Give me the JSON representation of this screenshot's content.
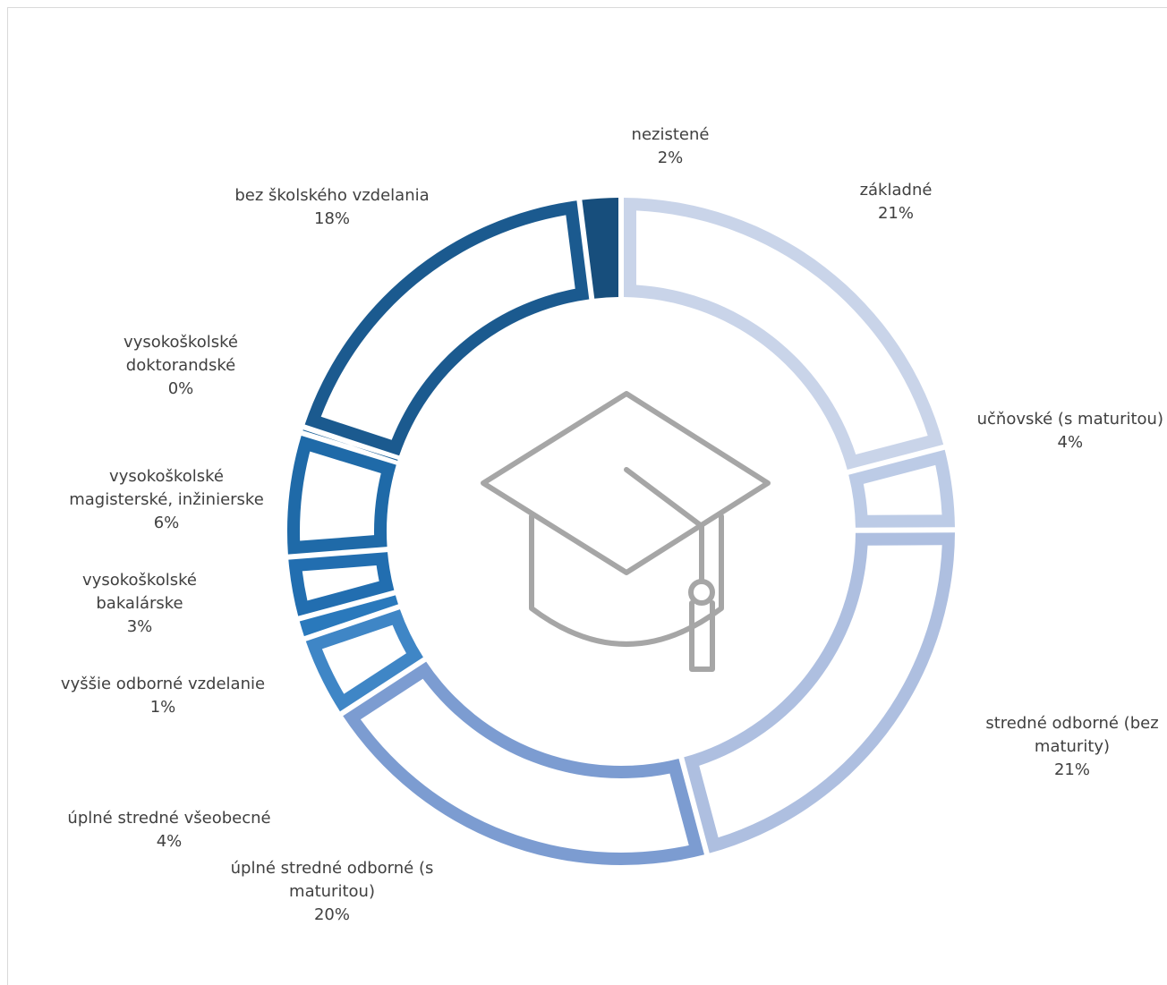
{
  "chart_data": {
    "type": "pie",
    "title": "",
    "center_icon": "graduation-cap-icon",
    "slices": [
      {
        "label_lines": [
          "základné"
        ],
        "percent_label": "21%",
        "value": 21,
        "color": "#c9d4e9"
      },
      {
        "label_lines": [
          "učňovské (s maturitou)"
        ],
        "percent_label": "4%",
        "value": 4,
        "color": "#bccbe6"
      },
      {
        "label_lines": [
          "stredné odborné (bez",
          "maturity)"
        ],
        "percent_label": "21%",
        "value": 21,
        "color": "#aebfe0"
      },
      {
        "label_lines": [
          "úplné stredné odborné (s",
          "maturitou)"
        ],
        "percent_label": "20%",
        "value": 20,
        "color": "#7c9cd1"
      },
      {
        "label_lines": [
          "úplné stredné všeobecné"
        ],
        "percent_label": "4%",
        "value": 4,
        "color": "#3f86c6"
      },
      {
        "label_lines": [
          "vyššie odborné vzdelanie"
        ],
        "percent_label": "1%",
        "value": 1,
        "color": "#2a79bc"
      },
      {
        "label_lines": [
          "vysokoškolské",
          "bakalárske"
        ],
        "percent_label": "3%",
        "value": 3,
        "color": "#226eb0"
      },
      {
        "label_lines": [
          "vysokoškolské",
          "magisterské, inžinierske"
        ],
        "percent_label": "6%",
        "value": 6,
        "color": "#1f6aa8"
      },
      {
        "label_lines": [
          "vysokoškolské",
          "doktorandské"
        ],
        "percent_label": "0%",
        "value": 0.3,
        "color": "#1c6199"
      },
      {
        "label_lines": [
          "bez školského vzdelania"
        ],
        "percent_label": "18%",
        "value": 18,
        "color": "#1b5a8f"
      },
      {
        "label_lines": [
          "nezistené"
        ],
        "percent_label": "2%",
        "value": 2,
        "color": "#174e7c"
      }
    ]
  }
}
